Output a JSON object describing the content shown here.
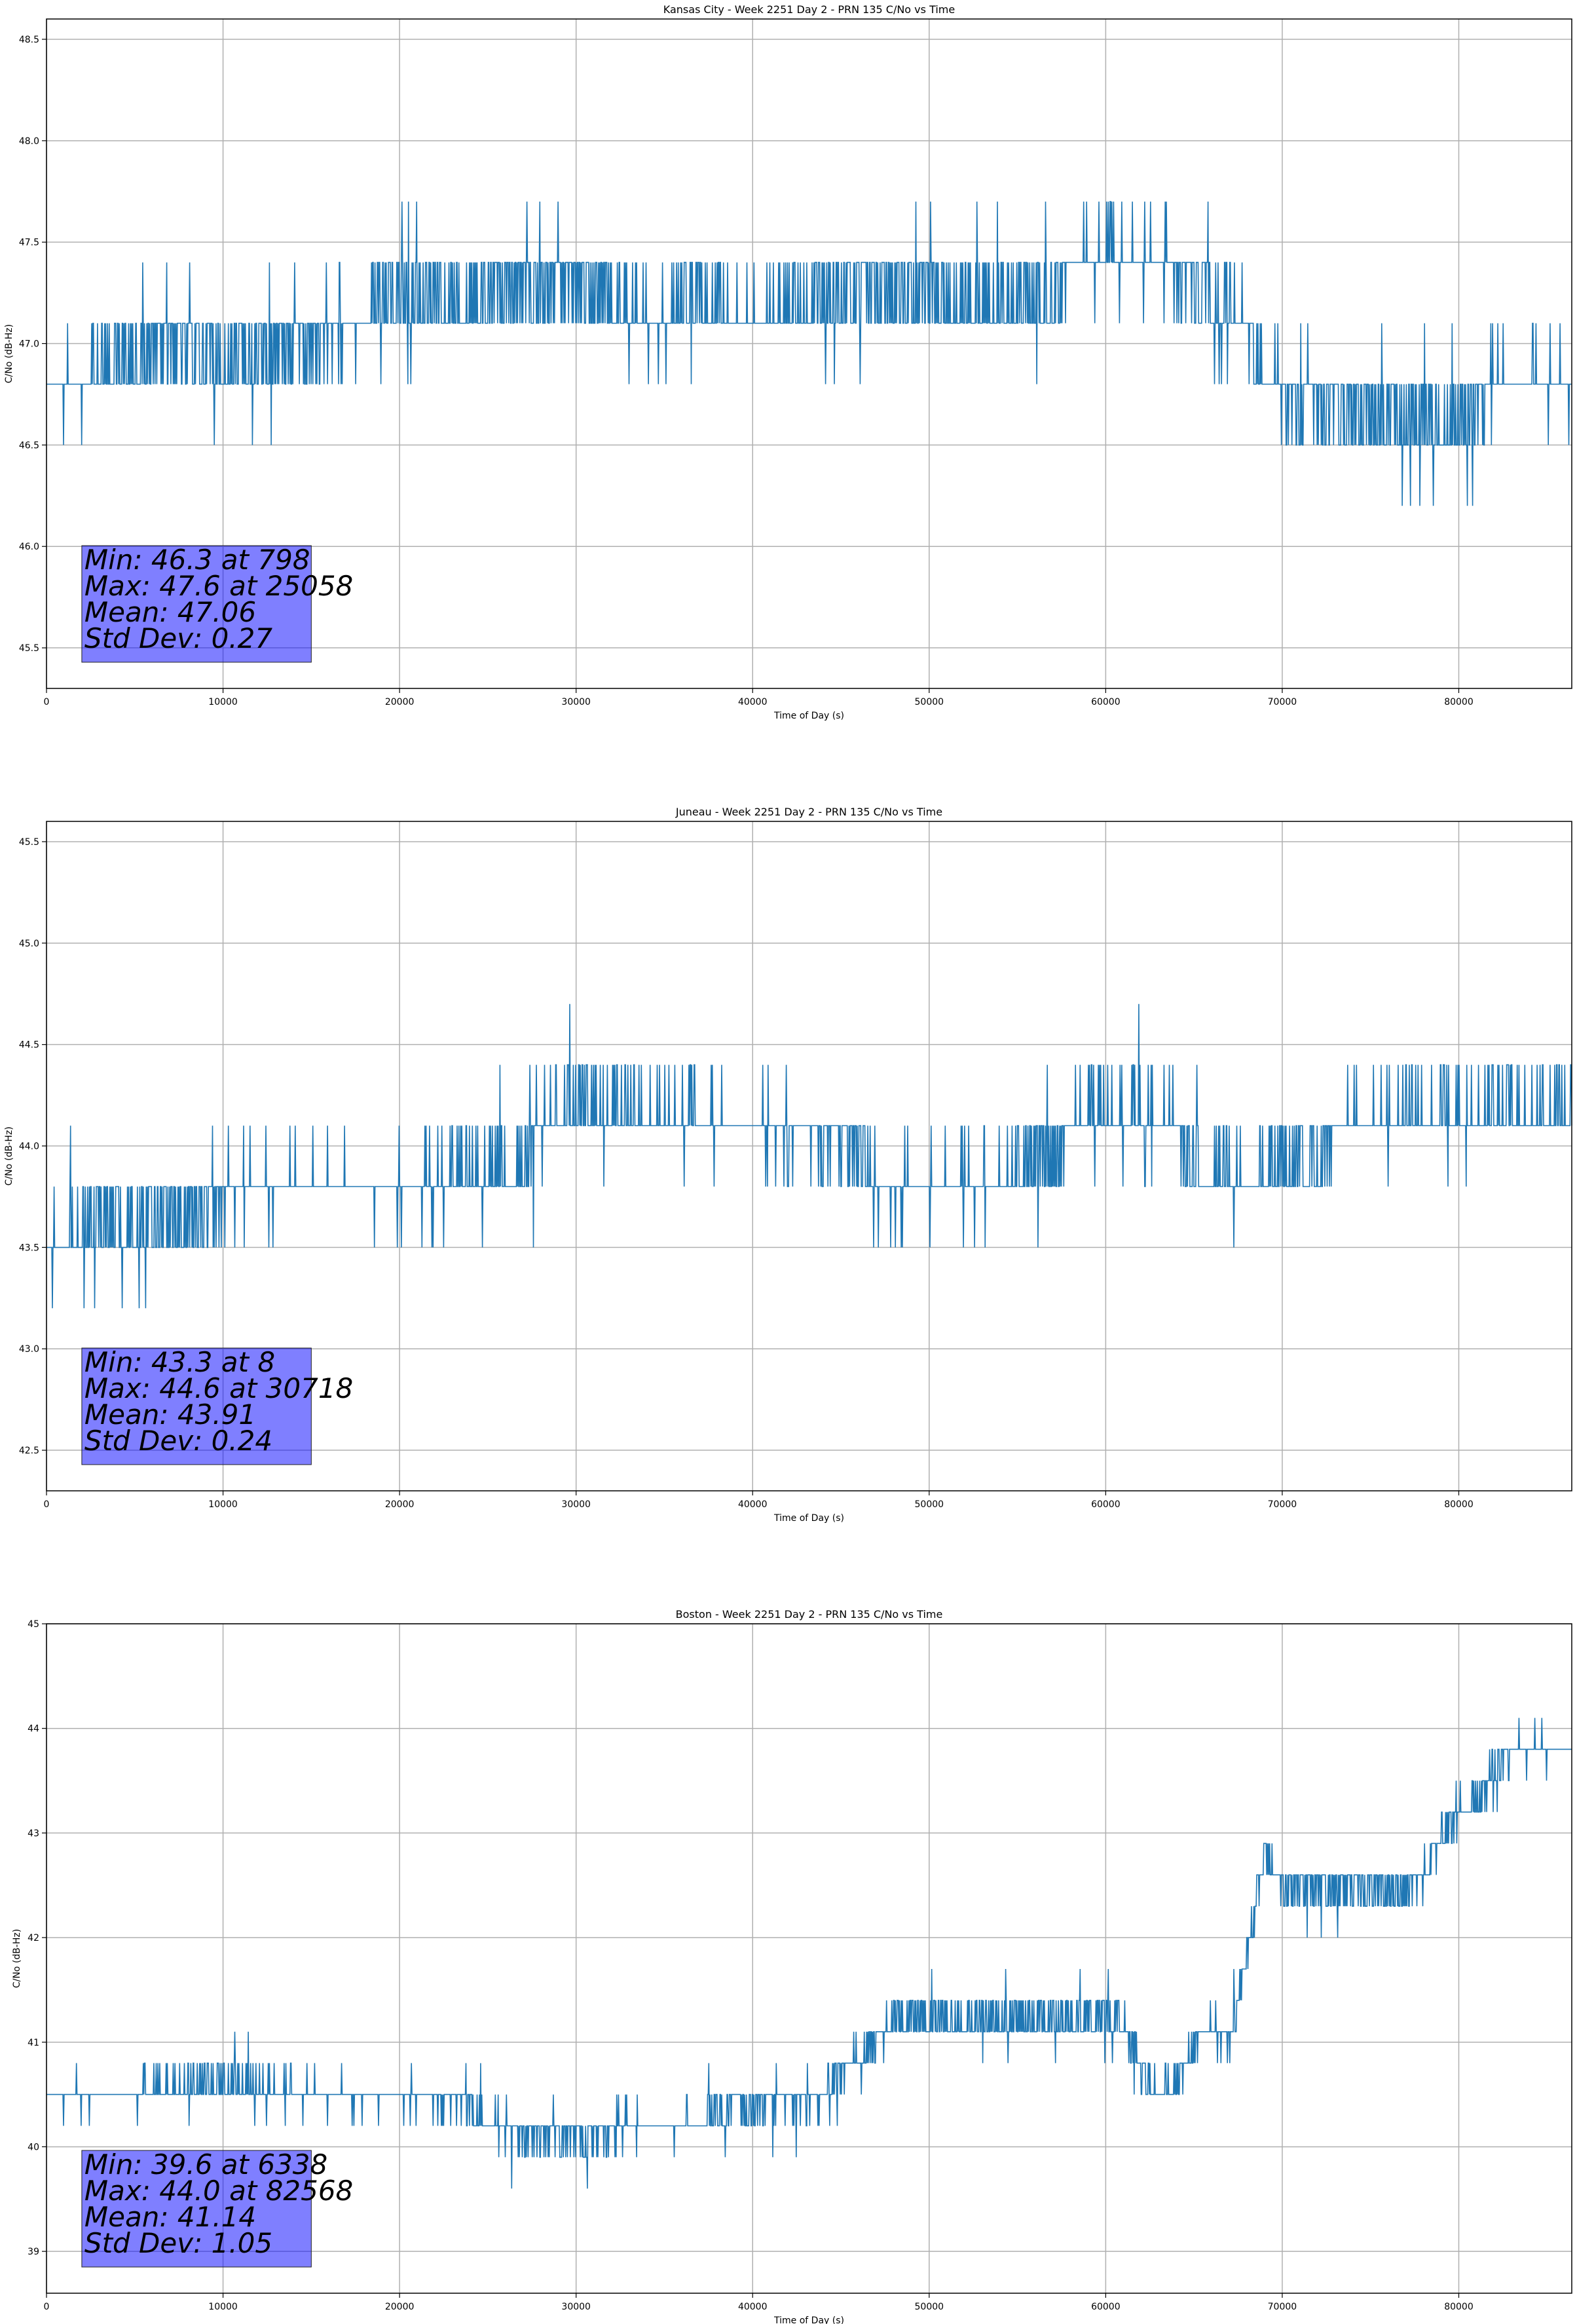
{
  "chart_data": [
    {
      "type": "line",
      "title": "Kansas City - Week 2251 Day 2 - PRN 135 C/No vs Time",
      "xlabel": "Time of Day (s)",
      "ylabel": "C/No (dB-Hz)",
      "xlim": [
        0,
        86400
      ],
      "ylim": [
        45.3,
        48.6
      ],
      "xticks": [
        0,
        10000,
        20000,
        30000,
        40000,
        50000,
        60000,
        70000,
        80000
      ],
      "yticks": [
        "45.5",
        "46.0",
        "46.5",
        "47.0",
        "47.5",
        "48.0",
        "48.5"
      ],
      "grid": true,
      "color": "#1f77b4",
      "quantum": 0.3,
      "stats": {
        "min": "Min: 46.3 at 798",
        "max": "Max: 47.6 at 25058",
        "mean": "Mean: 47.06",
        "std": "Std Dev: 0.27"
      },
      "series": [
        {
          "x": [
            0,
            2000,
            3000,
            8000,
            10000,
            18000,
            19000,
            25000,
            26000,
            30000,
            31000,
            35000,
            36000,
            40000,
            42000,
            43000,
            45000,
            50000,
            57000,
            58000,
            60000,
            64000,
            66000,
            68000,
            69000,
            72000,
            80000,
            82000,
            86400
          ],
          "y": [
            46.8,
            46.8,
            46.9,
            47.0,
            46.9,
            47.1,
            47.2,
            47.2,
            47.3,
            47.3,
            47.2,
            47.1,
            47.2,
            47.1,
            47.2,
            47.2,
            47.3,
            47.2,
            47.2,
            47.4,
            47.45,
            47.4,
            47.2,
            47.1,
            46.8,
            46.7,
            46.6,
            46.8,
            46.8
          ]
        }
      ]
    },
    {
      "type": "line",
      "title": "Juneau - Week 2251 Day 2 - PRN 135 C/No vs Time",
      "xlabel": "Time of Day (s)",
      "ylabel": "C/No (dB-Hz)",
      "xlim": [
        0,
        86400
      ],
      "ylim": [
        42.3,
        45.6
      ],
      "xticks": [
        0,
        10000,
        20000,
        30000,
        40000,
        50000,
        60000,
        70000,
        80000
      ],
      "yticks": [
        "42.5",
        "43.0",
        "43.5",
        "44.0",
        "44.5",
        "45.0",
        "45.5"
      ],
      "grid": true,
      "color": "#1f77b4",
      "quantum": 0.3,
      "stats": {
        "min": "Min: 43.3 at 8",
        "max": "Max: 44.6 at 30718",
        "mean": "Mean: 43.91",
        "std": "Std Dev: 0.24"
      },
      "series": [
        {
          "x": [
            0,
            2000,
            5000,
            9000,
            10000,
            20000,
            27000,
            28000,
            30000,
            40000,
            46000,
            47000,
            52000,
            55000,
            57000,
            58000,
            60000,
            64000,
            65000,
            70000,
            72000,
            73000,
            80000,
            86400
          ],
          "y": [
            43.5,
            43.6,
            43.6,
            43.7,
            43.8,
            43.8,
            43.9,
            44.1,
            44.2,
            44.1,
            44.0,
            43.8,
            43.8,
            43.85,
            43.95,
            44.1,
            44.15,
            44.1,
            43.85,
            43.85,
            43.9,
            44.1,
            44.15,
            44.15
          ]
        }
      ]
    },
    {
      "type": "line",
      "title": "Boston - Week 2251 Day 2 - PRN 135 C/No vs Time",
      "xlabel": "Time of Day (s)",
      "ylabel": "C/No (dB-Hz)",
      "xlim": [
        0,
        86400
      ],
      "ylim": [
        38.6,
        45.0
      ],
      "xticks": [
        0,
        10000,
        20000,
        30000,
        40000,
        50000,
        60000,
        70000,
        80000
      ],
      "yticks": [
        "39",
        "40",
        "41",
        "42",
        "43",
        "44",
        "45"
      ],
      "grid": true,
      "color": "#1f77b4",
      "quantum": 0.3,
      "stats": {
        "min": "Min: 39.6 at 6338",
        "max": "Max: 44.0 at 82568",
        "mean": "Mean: 41.14",
        "std": "Std Dev: 1.05"
      },
      "series": [
        {
          "x": [
            0,
            5000,
            10000,
            15000,
            20000,
            24000,
            25000,
            30000,
            33000,
            37000,
            38000,
            40000,
            44000,
            45000,
            47000,
            48000,
            55000,
            61000,
            62000,
            63000,
            64000,
            65000,
            66000,
            67000,
            68000,
            69000,
            70000,
            75000,
            77000,
            78000,
            79000,
            80000,
            81000,
            82000,
            83000,
            86400
          ],
          "y": [
            40.5,
            40.5,
            40.6,
            40.5,
            40.5,
            40.4,
            40.2,
            40.1,
            40.2,
            40.2,
            40.4,
            40.4,
            40.5,
            40.7,
            41.0,
            41.2,
            41.2,
            41.2,
            40.7,
            40.5,
            40.6,
            41.0,
            41.1,
            41.0,
            41.8,
            42.8,
            42.5,
            42.5,
            42.4,
            42.6,
            43.0,
            43.2,
            43.3,
            43.6,
            43.8,
            43.8
          ]
        }
      ]
    }
  ]
}
